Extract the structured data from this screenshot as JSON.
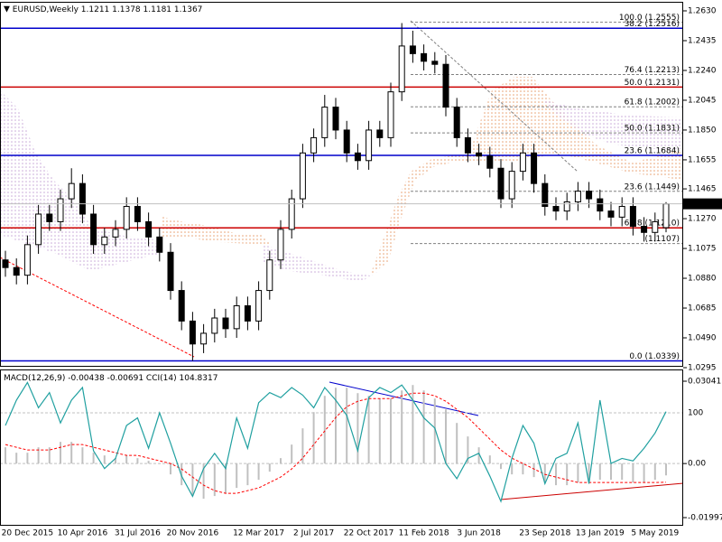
{
  "chart_data": [
    {
      "type": "candlestick",
      "title": "EURUSD,Weekly",
      "categories": [
        null,
        null,
        "20 Dec 2015",
        null,
        null,
        null,
        null,
        "10 Apr 2016",
        null,
        null,
        null,
        null,
        "31 Jul 2016",
        null,
        null,
        null,
        null,
        "20 Nov 2016",
        null,
        null,
        null,
        null,
        null,
        "12 Mar 2017",
        null,
        null,
        null,
        null,
        "2 Jul 2017",
        null,
        null,
        null,
        null,
        "22 Oct 2017",
        null,
        null,
        null,
        null,
        "11 Feb 2018",
        null,
        null,
        null,
        null,
        "3 Jun 2018",
        null,
        null,
        null,
        null,
        null,
        "23 Sep 2018",
        null,
        null,
        null,
        null,
        "13 Jan 2019",
        null,
        null,
        null,
        null,
        "5 May 2019",
        null
      ],
      "open": [
        1.1,
        1.095,
        1.09,
        1.11,
        1.13,
        1.125,
        1.14,
        1.15,
        1.13,
        1.11,
        1.115,
        1.12,
        1.135,
        1.125,
        1.115,
        1.105,
        1.08,
        1.06,
        1.045,
        1.052,
        1.062,
        1.055,
        1.07,
        1.06,
        1.08,
        1.1,
        1.12,
        1.14,
        1.17,
        1.18,
        1.2,
        1.185,
        1.17,
        1.165,
        1.185,
        1.18,
        1.21,
        1.24,
        1.235,
        1.23,
        1.228,
        1.2,
        1.18,
        1.17,
        1.168,
        1.16,
        1.14,
        1.158,
        1.17,
        1.15,
        1.135,
        1.132,
        1.138,
        1.145,
        1.14,
        1.132,
        1.128,
        1.135,
        1.122,
        1.118,
        1.1211
      ],
      "high": [
        1.106,
        1.101,
        1.116,
        1.136,
        1.136,
        1.146,
        1.16,
        1.156,
        1.136,
        1.121,
        1.126,
        1.141,
        1.141,
        1.131,
        1.121,
        1.111,
        1.086,
        1.066,
        1.058,
        1.068,
        1.068,
        1.076,
        1.076,
        1.086,
        1.106,
        1.126,
        1.146,
        1.176,
        1.186,
        1.208,
        1.206,
        1.191,
        1.176,
        1.191,
        1.191,
        1.216,
        1.255,
        1.25,
        1.241,
        1.236,
        1.234,
        1.206,
        1.186,
        1.176,
        1.174,
        1.166,
        1.164,
        1.176,
        1.176,
        1.156,
        1.141,
        1.144,
        1.151,
        1.151,
        1.146,
        1.138,
        1.141,
        1.141,
        1.128,
        1.131,
        1.1378
      ],
      "low": [
        1.089,
        1.084,
        1.084,
        1.104,
        1.119,
        1.119,
        1.134,
        1.124,
        1.104,
        1.104,
        1.109,
        1.114,
        1.119,
        1.109,
        1.099,
        1.074,
        1.054,
        1.034,
        1.039,
        1.046,
        1.049,
        1.049,
        1.054,
        1.054,
        1.074,
        1.094,
        1.114,
        1.134,
        1.164,
        1.174,
        1.179,
        1.164,
        1.159,
        1.159,
        1.174,
        1.174,
        1.204,
        1.229,
        1.224,
        1.222,
        1.194,
        1.174,
        1.164,
        1.162,
        1.154,
        1.134,
        1.134,
        1.152,
        1.144,
        1.129,
        1.126,
        1.126,
        1.132,
        1.134,
        1.126,
        1.122,
        1.122,
        1.116,
        1.112,
        1.112,
        1.1181
      ],
      "close": [
        1.095,
        1.09,
        1.11,
        1.13,
        1.125,
        1.14,
        1.15,
        1.13,
        1.11,
        1.115,
        1.12,
        1.135,
        1.125,
        1.115,
        1.105,
        1.08,
        1.06,
        1.045,
        1.052,
        1.062,
        1.055,
        1.07,
        1.06,
        1.08,
        1.1,
        1.12,
        1.14,
        1.17,
        1.18,
        1.2,
        1.185,
        1.17,
        1.165,
        1.185,
        1.18,
        1.21,
        1.24,
        1.235,
        1.23,
        1.228,
        1.2,
        1.18,
        1.17,
        1.168,
        1.16,
        1.14,
        1.158,
        1.17,
        1.15,
        1.135,
        1.132,
        1.138,
        1.145,
        1.14,
        1.132,
        1.128,
        1.135,
        1.122,
        1.118,
        1.125,
        1.1367
      ],
      "ylim": [
        1.0295,
        1.263
      ],
      "yticks": [
        {
          "value": 1.263,
          "label": "1.2630"
        },
        1.2435,
        {
          "value": 1.224,
          "label": "1.2240"
        },
        1.2045,
        {
          "value": 1.185,
          "label": "1.1850"
        },
        1.1655,
        1.1465,
        {
          "value": 1.127,
          "label": "1.1270"
        },
        1.1075,
        {
          "value": 1.088,
          "label": "1.0880"
        },
        1.0685,
        {
          "value": 1.049,
          "label": "1.0490"
        },
        1.0295
      ],
      "levels": [
        {
          "label": "100.0 (1.2555)",
          "value": 1.2555,
          "color": "#808080",
          "style": "dashed"
        },
        {
          "label": "38.2 (1.2516)",
          "value": 1.2516,
          "color": "#0000cc",
          "style": "solid"
        },
        {
          "label": "76.4 (1.2213)",
          "value": 1.2213,
          "color": "#808080",
          "style": "dashed"
        },
        {
          "label": "50.0 (1.2131)",
          "value": 1.2131,
          "color": "#cc0000",
          "style": "solid"
        },
        {
          "label": "61.8 (1.2002)",
          "value": 1.2002,
          "color": "#808080",
          "style": "dashed"
        },
        {
          "label": "50.0 (1.1831)",
          "value": 1.1831,
          "color": "#808080",
          "style": "dashed"
        },
        {
          "label": "23.6 (1.1684)",
          "value": 1.1684,
          "color": "#0000cc",
          "style": "solid"
        },
        {
          "label": "23.6 (1.1449)",
          "value": 1.1449,
          "color": "#808080",
          "style": "dashed"
        },
        {
          "label": "61.8 (1.1210)",
          "value": 1.121,
          "color": "#cc0000",
          "style": "solid"
        },
        {
          "label": "(1.1107)",
          "value": 1.1107,
          "color": "#808080",
          "style": "dashed"
        },
        {
          "label": "0.0 (1.0339)",
          "value": 1.0339,
          "color": "#0000cc",
          "style": "solid"
        }
      ],
      "up_color": "#ffffff",
      "down_color": "#000000"
    },
    {
      "type": "macd",
      "series": [
        {
          "name": "MACD(12,26,9)",
          "color": "#c0c0c0",
          "values": [
            0.006,
            0.004,
            0.004,
            0.006,
            0.006,
            0.008,
            0.008,
            0.006,
            0.004,
            0.003,
            0.002,
            0.003,
            0.002,
            0.001,
            0.0,
            -0.004,
            -0.008,
            -0.012,
            -0.013,
            -0.012,
            -0.011,
            -0.009,
            -0.008,
            -0.006,
            -0.003,
            0.002,
            0.007,
            0.013,
            0.019,
            0.025,
            0.028,
            0.028,
            0.026,
            0.025,
            0.024,
            0.024,
            0.027,
            0.029,
            0.027,
            0.024,
            0.02,
            0.015,
            0.01,
            0.006,
            0.003,
            -0.002,
            -0.004,
            -0.004,
            -0.005,
            -0.007,
            -0.008,
            -0.008,
            -0.007,
            -0.006,
            -0.006,
            -0.006,
            -0.006,
            -0.007,
            -0.007,
            -0.006,
            -0.00438
          ]
        },
        {
          "color": "#ff0000",
          "values": [
            0.007,
            0.006,
            0.005,
            0.005,
            0.005,
            0.006,
            0.007,
            0.007,
            0.006,
            0.005,
            0.004,
            0.003,
            0.003,
            0.002,
            0.001,
            0.0,
            -0.002,
            -0.005,
            -0.008,
            -0.01,
            -0.011,
            -0.011,
            -0.01,
            -0.009,
            -0.007,
            -0.005,
            -0.002,
            0.002,
            0.007,
            0.012,
            0.017,
            0.021,
            0.023,
            0.024,
            0.024,
            0.024,
            0.025,
            0.026,
            0.026,
            0.025,
            0.023,
            0.02,
            0.017,
            0.013,
            0.009,
            0.005,
            0.002,
            0.0,
            -0.002,
            -0.004,
            -0.005,
            -0.006,
            -0.007,
            -0.007,
            -0.007,
            -0.007,
            -0.007,
            -0.007,
            -0.007,
            -0.007,
            -0.00691
          ]
        },
        {
          "name": "CCI(14)",
          "color": "#20a0a0",
          "axis": "y2",
          "values": [
            50,
            150,
            220,
            120,
            180,
            60,
            150,
            200,
            -50,
            -120,
            -80,
            50,
            80,
            -40,
            100,
            -20,
            -150,
            -230,
            -120,
            -60,
            -120,
            80,
            -40,
            140,
            180,
            160,
            200,
            170,
            120,
            200,
            150,
            90,
            -50,
            160,
            200,
            180,
            210,
            150,
            80,
            40,
            -100,
            -160,
            -80,
            -60,
            -150,
            -250,
            -80,
            50,
            -20,
            -180,
            -80,
            -60,
            60,
            -180,
            150,
            -100,
            -80,
            -90,
            -40,
            20,
            104.8317
          ]
        }
      ],
      "ylim": [
        -0.01997,
        0.03041
      ],
      "yticks": [
        0.03041,
        {
          "value": 0,
          "label": "0.00"
        },
        -0.01997
      ],
      "y2lim": [
        -314,
        225
      ],
      "y2ticks": [
        100
      ]
    }
  ]
}
